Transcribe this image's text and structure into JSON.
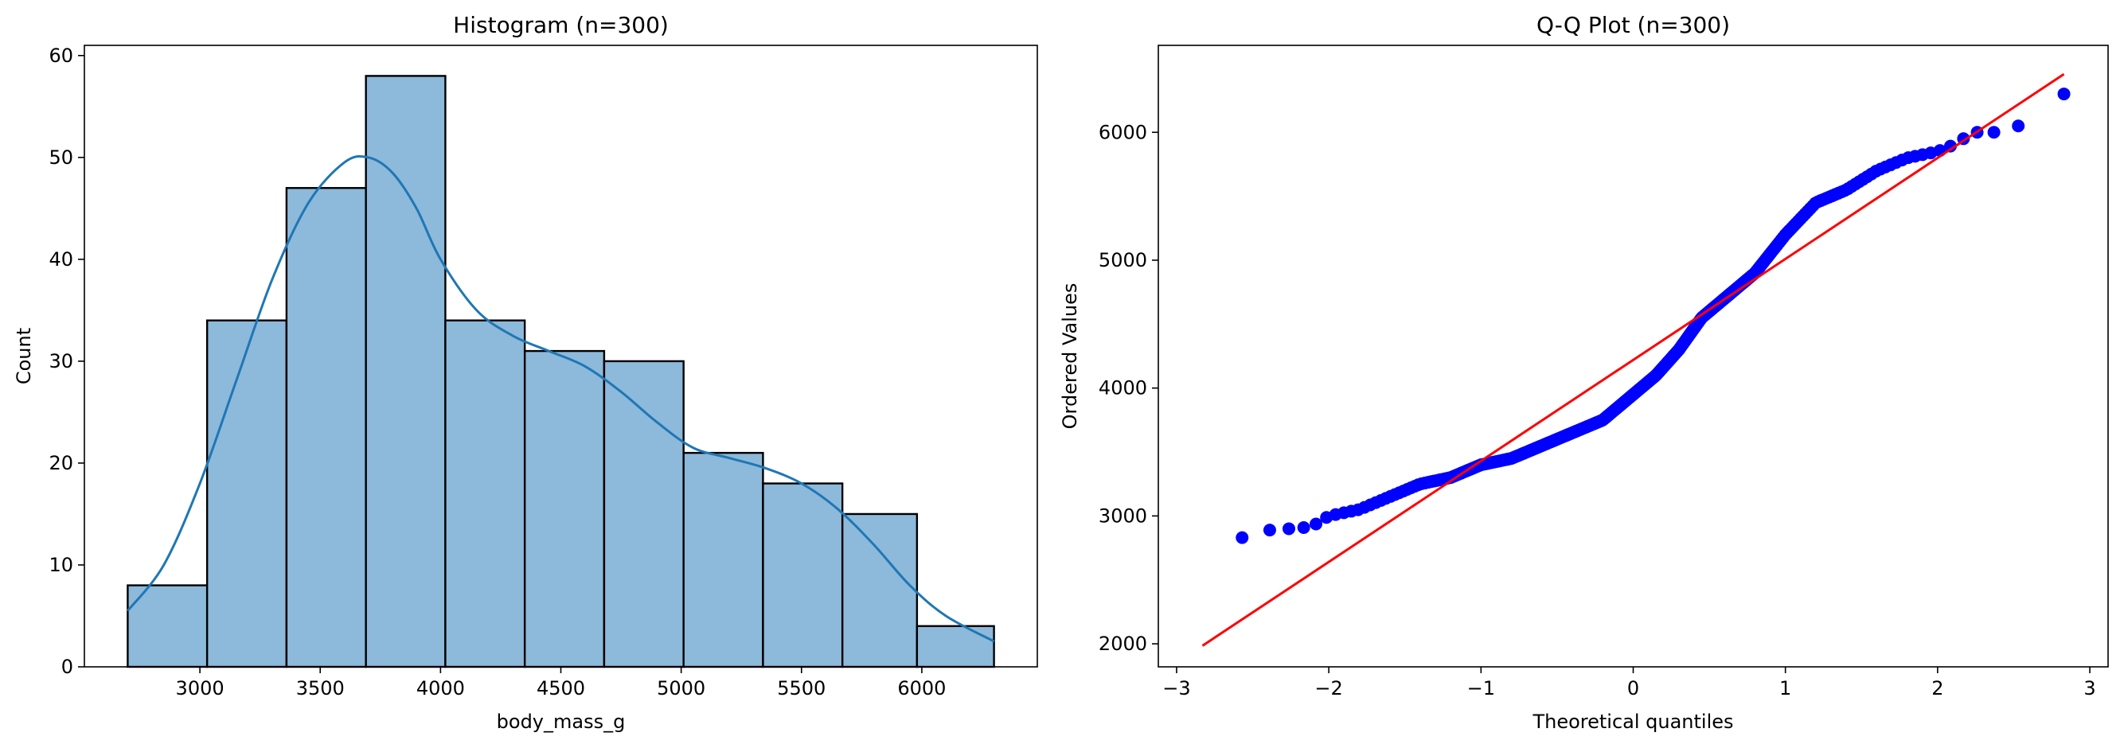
{
  "chart_data": [
    {
      "type": "bar",
      "title": "Histogram (n=300)",
      "xlabel": "body_mass_g",
      "ylabel": "Count",
      "xlim": [
        2520,
        6480
      ],
      "ylim": [
        0,
        61
      ],
      "xticks": [
        3000,
        3500,
        4000,
        4500,
        5000,
        5500,
        6000
      ],
      "yticks": [
        0,
        10,
        20,
        30,
        40,
        50,
        60
      ],
      "bin_edges": [
        2700,
        3030,
        3360,
        3690,
        4020,
        4350,
        4680,
        5010,
        5340,
        5670,
        5980,
        6300
      ],
      "counts": [
        8,
        34,
        47,
        58,
        34,
        31,
        30,
        21,
        18,
        15,
        4
      ],
      "kde": {
        "x": [
          2700,
          2850,
          3000,
          3150,
          3300,
          3450,
          3600,
          3700,
          3800,
          3900,
          4000,
          4150,
          4300,
          4450,
          4600,
          4750,
          4900,
          5050,
          5200,
          5350,
          5500,
          5650,
          5800,
          5950,
          6100,
          6300
        ],
        "y": [
          5.5,
          10,
          18,
          28,
          38,
          45.5,
          49.5,
          50,
          48.5,
          45,
          40,
          35,
          32.5,
          31,
          29.5,
          27,
          24,
          21.5,
          20.5,
          19.5,
          18,
          15.5,
          12,
          8,
          5,
          2.5
        ]
      },
      "colors": {
        "bar_fill": "#8db9db",
        "bar_edge": "#000000",
        "kde_line": "#1f77b4"
      }
    },
    {
      "type": "scatter",
      "title": "Q-Q Plot (n=300)",
      "xlabel": "Theoretical quantiles",
      "ylabel": "Ordered Values",
      "xlim": [
        -3.12,
        3.12
      ],
      "ylim": [
        1820,
        6680
      ],
      "xticks": [
        -3,
        -2,
        -1,
        0,
        1,
        2,
        3
      ],
      "xtick_labels": [
        "−3",
        "−2",
        "−1",
        "0",
        "1",
        "2",
        "3"
      ],
      "yticks": [
        2000,
        3000,
        4000,
        5000,
        6000
      ],
      "quantile_curve": {
        "x": [
          -2.83,
          -2.53,
          -2.35,
          -2.2,
          -2.1,
          -2.0,
          -1.8,
          -1.6,
          -1.4,
          -1.2,
          -1.0,
          -0.8,
          -0.6,
          -0.4,
          -0.2,
          0.0,
          0.15,
          0.3,
          0.45,
          0.6,
          0.8,
          1.0,
          1.2,
          1.4,
          1.6,
          1.8,
          2.0,
          2.1
        ],
        "y": [
          2700,
          2850,
          2900,
          2900,
          2925,
          3000,
          3050,
          3150,
          3250,
          3300,
          3400,
          3450,
          3550,
          3650,
          3750,
          3950,
          4100,
          4300,
          4550,
          4700,
          4900,
          5200,
          5450,
          5550,
          5700,
          5800,
          5850,
          5900
        ]
      },
      "tail_points": [
        {
          "x": 2.17,
          "y": 5950
        },
        {
          "x": 2.26,
          "y": 6000
        },
        {
          "x": 2.37,
          "y": 6000
        },
        {
          "x": 2.53,
          "y": 6050
        },
        {
          "x": 2.83,
          "y": 6300
        }
      ],
      "fit_line": {
        "x": [
          -2.83,
          2.83
        ],
        "y": [
          1985,
          6455
        ]
      },
      "colors": {
        "points": "#0000ff",
        "fit_line": "#ff0000"
      }
    }
  ]
}
